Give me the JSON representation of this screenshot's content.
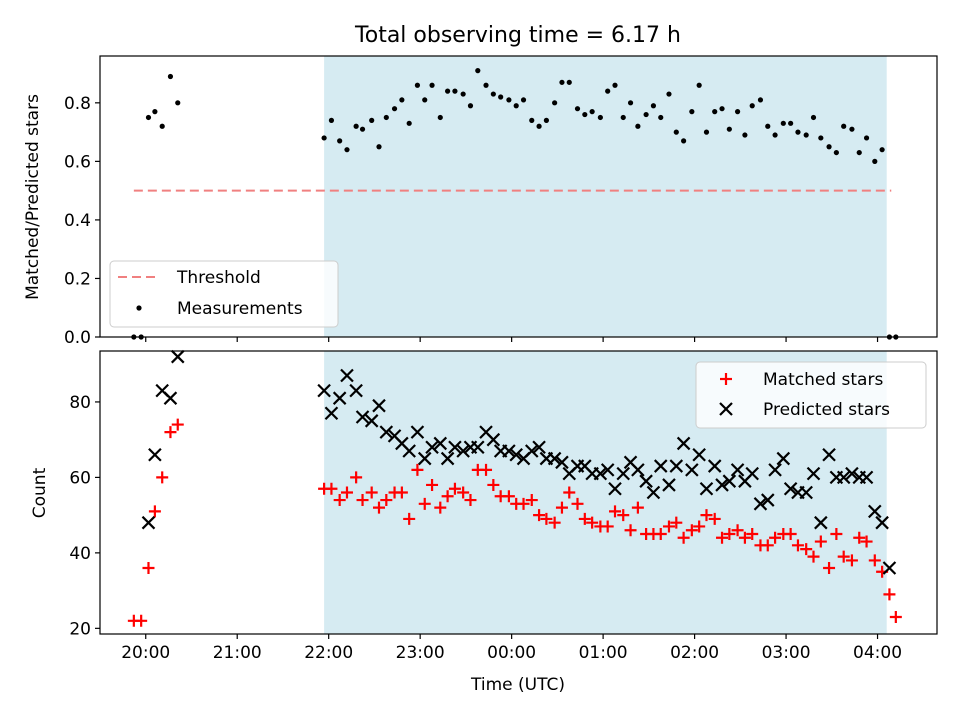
{
  "figure": {
    "title": "Total observing time = 6.17 h",
    "shade_color": "#add8e6",
    "x_ticks": [
      "20:00",
      "21:00",
      "22:00",
      "23:00",
      "00:00",
      "01:00",
      "02:00",
      "03:00",
      "04:00"
    ]
  },
  "chart_data": [
    {
      "type": "scatter",
      "ylabel": "Matched/Predicted stars",
      "xlim": [
        19.5,
        28.65
      ],
      "ylim": [
        0,
        0.96
      ],
      "y_ticks": [
        "0.0",
        "0.2",
        "0.4",
        "0.6",
        "0.8"
      ],
      "shaded_span": [
        21.95,
        28.1
      ],
      "legend": {
        "position": "lower-left",
        "entries": [
          "Threshold",
          "Measurements"
        ]
      },
      "threshold": {
        "name": "Threshold",
        "y": 0.5,
        "x_range": [
          19.87,
          28.15
        ],
        "color": "#f08080",
        "style": "dashed"
      },
      "series": [
        {
          "name": "Measurements",
          "marker": "dot",
          "color": "#000000",
          "x": [
            19.87,
            19.95,
            20.03,
            20.1,
            20.18,
            20.27,
            20.35,
            21.95,
            22.03,
            22.12,
            22.2,
            22.3,
            22.37,
            22.47,
            22.55,
            22.63,
            22.72,
            22.8,
            22.88,
            22.97,
            23.05,
            23.13,
            23.22,
            23.3,
            23.38,
            23.47,
            23.55,
            23.63,
            23.72,
            23.8,
            23.88,
            23.97,
            24.05,
            24.13,
            24.22,
            24.3,
            24.38,
            24.47,
            24.55,
            24.63,
            24.72,
            24.8,
            24.88,
            24.97,
            25.05,
            25.13,
            25.22,
            25.3,
            25.38,
            25.47,
            25.55,
            25.63,
            25.72,
            25.8,
            25.88,
            25.97,
            26.05,
            26.13,
            26.22,
            26.3,
            26.38,
            26.47,
            26.55,
            26.63,
            26.72,
            26.8,
            26.88,
            26.97,
            27.05,
            27.13,
            27.22,
            27.3,
            27.38,
            27.47,
            27.55,
            27.63,
            27.72,
            27.8,
            27.88,
            27.97,
            28.05,
            28.13,
            28.2
          ],
          "y": [
            0.0,
            0.0,
            0.75,
            0.77,
            0.72,
            0.89,
            0.8,
            0.68,
            0.74,
            0.67,
            0.64,
            0.72,
            0.71,
            0.74,
            0.65,
            0.75,
            0.78,
            0.81,
            0.73,
            0.86,
            0.81,
            0.86,
            0.75,
            0.84,
            0.84,
            0.83,
            0.79,
            0.91,
            0.86,
            0.83,
            0.82,
            0.81,
            0.79,
            0.81,
            0.74,
            0.72,
            0.74,
            0.8,
            0.87,
            0.87,
            0.78,
            0.76,
            0.77,
            0.75,
            0.84,
            0.86,
            0.75,
            0.8,
            0.72,
            0.76,
            0.79,
            0.75,
            0.83,
            0.7,
            0.67,
            0.77,
            0.86,
            0.7,
            0.77,
            0.78,
            0.71,
            0.77,
            0.69,
            0.79,
            0.81,
            0.72,
            0.69,
            0.73,
            0.73,
            0.7,
            0.69,
            0.75,
            0.68,
            0.65,
            0.63,
            0.72,
            0.71,
            0.63,
            0.68,
            0.6,
            0.64,
            0.0,
            0.0
          ]
        }
      ]
    },
    {
      "type": "scatter",
      "xlabel": "Time (UTC)",
      "ylabel": "Count",
      "xlim": [
        19.5,
        28.65
      ],
      "ylim": [
        18.5,
        93.5
      ],
      "y_ticks": [
        "20",
        "40",
        "60",
        "80"
      ],
      "shaded_span": [
        21.95,
        28.1
      ],
      "legend": {
        "position": "upper-right",
        "entries": [
          "Matched stars",
          "Predicted stars"
        ]
      },
      "series": [
        {
          "name": "Matched stars",
          "marker": "plus",
          "color": "#ff0000",
          "x": [
            19.87,
            19.95,
            20.03,
            20.1,
            20.18,
            20.27,
            20.35,
            21.95,
            22.03,
            22.12,
            22.2,
            22.3,
            22.37,
            22.47,
            22.55,
            22.63,
            22.72,
            22.8,
            22.88,
            22.97,
            23.05,
            23.13,
            23.22,
            23.3,
            23.38,
            23.47,
            23.55,
            23.63,
            23.72,
            23.8,
            23.88,
            23.97,
            24.05,
            24.13,
            24.22,
            24.3,
            24.38,
            24.47,
            24.55,
            24.63,
            24.72,
            24.8,
            24.88,
            24.97,
            25.05,
            25.13,
            25.22,
            25.3,
            25.38,
            25.47,
            25.55,
            25.63,
            25.72,
            25.8,
            25.88,
            25.97,
            26.05,
            26.13,
            26.22,
            26.3,
            26.38,
            26.47,
            26.55,
            26.63,
            26.72,
            26.8,
            26.88,
            26.97,
            27.05,
            27.13,
            27.22,
            27.3,
            27.38,
            27.47,
            27.55,
            27.63,
            27.72,
            27.8,
            27.88,
            27.97,
            28.05,
            28.13,
            28.2
          ],
          "y": [
            22,
            22,
            36,
            51,
            60,
            72,
            74,
            57,
            57,
            54,
            56,
            60,
            54,
            56,
            52,
            54,
            56,
            56,
            49,
            62,
            53,
            58,
            52,
            55,
            57,
            56,
            54,
            62,
            62,
            58,
            55,
            55,
            53,
            53,
            54,
            50,
            49,
            48,
            52,
            56,
            53,
            49,
            48,
            47,
            47,
            51,
            50,
            46,
            52,
            45,
            45,
            45,
            47,
            48,
            44,
            46,
            47,
            50,
            49,
            44,
            45,
            46,
            44,
            45,
            42,
            42,
            44,
            45,
            45,
            42,
            41,
            39,
            43,
            36,
            45,
            39,
            38,
            44,
            43,
            38,
            35,
            29,
            23
          ]
        },
        {
          "name": "Predicted stars",
          "marker": "x",
          "color": "#000000",
          "x": [
            20.03,
            20.1,
            20.18,
            20.27,
            20.35,
            21.95,
            22.03,
            22.12,
            22.2,
            22.3,
            22.37,
            22.47,
            22.55,
            22.63,
            22.72,
            22.8,
            22.88,
            22.97,
            23.05,
            23.13,
            23.22,
            23.3,
            23.38,
            23.47,
            23.55,
            23.63,
            23.72,
            23.8,
            23.88,
            23.97,
            24.05,
            24.13,
            24.22,
            24.3,
            24.38,
            24.47,
            24.55,
            24.63,
            24.72,
            24.8,
            24.88,
            24.97,
            25.05,
            25.13,
            25.22,
            25.3,
            25.38,
            25.47,
            25.55,
            25.63,
            25.72,
            25.8,
            25.88,
            25.97,
            26.05,
            26.13,
            26.22,
            26.3,
            26.38,
            26.47,
            26.55,
            26.63,
            26.72,
            26.8,
            26.88,
            26.97,
            27.05,
            27.13,
            27.22,
            27.3,
            27.38,
            27.47,
            27.55,
            27.63,
            27.72,
            27.8,
            27.88,
            27.97,
            28.05,
            28.13
          ],
          "y": [
            48,
            66,
            83,
            81,
            92,
            83,
            77,
            81,
            87,
            83,
            76,
            75,
            79,
            72,
            71,
            69,
            67,
            72,
            65,
            68,
            69,
            65,
            68,
            67,
            68,
            68,
            72,
            70,
            67,
            67,
            66,
            65,
            67,
            68,
            65,
            65,
            64,
            61,
            63,
            63,
            61,
            61,
            62,
            57,
            61,
            64,
            62,
            59,
            56,
            63,
            58,
            63,
            69,
            62,
            66,
            57,
            63,
            58,
            59,
            62,
            59,
            61,
            53,
            54,
            62,
            65,
            57,
            56,
            56,
            61,
            48,
            66,
            60,
            60,
            61,
            60,
            60,
            51,
            48,
            36
          ]
        }
      ]
    }
  ]
}
